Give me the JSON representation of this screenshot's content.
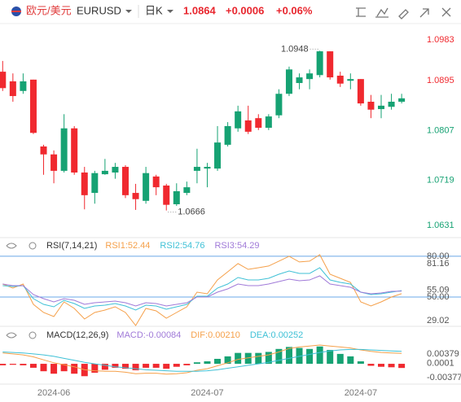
{
  "header": {
    "name": "欧元/美元",
    "symbol": "EURUSD",
    "period": "日K",
    "price": "1.0864",
    "change": "+0.0006",
    "change_pct": "+0.06%"
  },
  "chart_data": [
    {
      "type": "candlestick",
      "up_color": "#16a273",
      "down_color": "#f0292f",
      "categories": [
        null,
        null,
        null,
        null,
        null,
        "2024-06",
        null,
        null,
        null,
        null,
        null,
        null,
        null,
        null,
        null,
        null,
        null,
        null,
        null,
        null,
        "2024-07",
        null,
        null,
        null,
        null,
        null,
        null,
        null,
        null,
        null,
        null,
        null,
        null,
        null,
        null,
        "2024-07",
        null,
        null,
        null,
        null
      ],
      "open": [
        1.0911,
        1.0894,
        1.0877,
        1.0897,
        1.0779,
        1.0765,
        1.0736,
        1.0811,
        1.0733,
        1.0697,
        1.073,
        1.0733,
        1.0743,
        1.0697,
        1.0683,
        1.0726,
        1.071,
        1.0677,
        1.0697,
        1.0736,
        1.074,
        1.074,
        1.0782,
        1.0811,
        1.0825,
        1.0829,
        1.0812,
        1.0834,
        1.0872,
        1.0891,
        1.0898,
        1.0905,
        1.0947,
        1.0904,
        1.0895,
        1.0898,
        1.0858,
        1.0845,
        1.0849,
        1.0858
      ],
      "high": [
        1.093,
        1.0908,
        1.0908,
        1.0897,
        1.0782,
        1.0772,
        1.0836,
        1.0815,
        1.0743,
        1.0736,
        1.0757,
        1.075,
        1.0746,
        1.0713,
        1.0743,
        1.0729,
        1.0713,
        1.0714,
        1.0717,
        1.0775,
        1.075,
        1.0815,
        1.0822,
        1.0851,
        1.0851,
        1.0836,
        1.0836,
        1.088,
        1.092,
        1.0908,
        1.0915,
        1.0948,
        1.0947,
        1.0911,
        1.0908,
        1.0898,
        1.087,
        1.087,
        1.0872,
        1.0872
      ],
      "low": [
        1.0877,
        1.0858,
        1.0872,
        1.0801,
        1.0729,
        1.0714,
        1.0733,
        1.0729,
        1.0668,
        1.0678,
        1.0729,
        1.0722,
        1.0688,
        1.0667,
        1.0678,
        1.0693,
        1.0666,
        1.0674,
        1.0693,
        1.0714,
        1.0707,
        1.0736,
        1.0779,
        1.0805,
        1.0801,
        1.0808,
        1.0808,
        1.0829,
        1.0868,
        1.088,
        1.088,
        1.0901,
        1.0897,
        1.0884,
        1.088,
        1.0851,
        1.0829,
        1.0829,
        1.0844,
        1.0855
      ],
      "close": [
        1.0882,
        1.0868,
        1.0894,
        1.0803,
        1.0765,
        1.0736,
        1.0811,
        1.0733,
        1.0693,
        1.0732,
        1.0736,
        1.0743,
        1.0693,
        1.0686,
        1.0732,
        1.0707,
        1.0676,
        1.07,
        1.0707,
        1.0743,
        1.0743,
        1.0786,
        1.0815,
        1.0841,
        1.0805,
        1.0812,
        1.0832,
        1.0872,
        1.0915,
        1.0901,
        1.0908,
        1.0947,
        1.0901,
        1.089,
        1.0898,
        1.0855,
        1.0844,
        1.0851,
        1.0858,
        1.0864
      ],
      "ylim": [
        1.0631,
        1.0983
      ],
      "yticks": [
        1.0983,
        1.0895,
        1.0807,
        1.0719,
        1.0631
      ],
      "annotations": [
        {
          "label": "1.0948",
          "value": 1.0948
        },
        {
          "label": "1.0666",
          "value": 1.0666
        }
      ]
    },
    {
      "type": "line",
      "title": "RSI(7,14,21)",
      "series": [
        {
          "name": "RSI1:52.44",
          "color": "#f5a04a",
          "values": [
            59.6,
            56.6,
            59.6,
            44.6,
            38.6,
            35.6,
            46.4,
            41.6,
            33.8,
            38.6,
            40.4,
            42.8,
            38.6,
            29.02,
            41.6,
            39.8,
            34.4,
            38.6,
            42.8,
            53.6,
            52.4,
            62.6,
            68.6,
            74.6,
            70.4,
            71.6,
            72.8,
            76.4,
            80.0,
            75.8,
            76.4,
            81.16,
            66.8,
            63.8,
            60.8,
            46.4,
            43.4,
            46.4,
            50.0,
            52.44
          ]
        },
        {
          "name": "RSI2:54.76",
          "color": "#3fc1d6",
          "values": [
            58.4,
            57.8,
            58.4,
            48.8,
            44.6,
            42.8,
            47.6,
            45.2,
            41.6,
            43.4,
            44.0,
            45.2,
            43.4,
            40.4,
            44.0,
            43.4,
            41.0,
            42.8,
            44.6,
            50.6,
            50.6,
            56.6,
            59.6,
            64.4,
            62.6,
            62.6,
            63.8,
            66.8,
            69.2,
            67.4,
            67.4,
            71.6,
            62.6,
            60.8,
            59.6,
            53.6,
            51.8,
            52.4,
            53.6,
            54.76
          ]
        },
        {
          "name": "RSI3:54.29",
          "color": "#a07ad8",
          "values": [
            59.6,
            58.4,
            58.4,
            51.8,
            48.8,
            46.4,
            48.8,
            47.6,
            44.6,
            45.8,
            46.4,
            47.0,
            45.8,
            43.4,
            45.8,
            45.2,
            43.4,
            44.6,
            45.8,
            50.0,
            50.0,
            53.6,
            56.0,
            59.6,
            58.4,
            58.4,
            59.6,
            61.4,
            63.2,
            62.0,
            62.6,
            65.6,
            59.6,
            58.4,
            57.2,
            53.6,
            52.4,
            53.0,
            54.2,
            54.29
          ]
        }
      ],
      "ylim": [
        29.02,
        81.16
      ],
      "yticks": [
        81.16,
        {
          "value": 80,
          "label": "80.00"
        },
        55.09,
        {
          "value": 50,
          "label": "50.00"
        },
        29.02
      ],
      "reference_lines": [
        80,
        50
      ],
      "reference_color": "#6aa8e8"
    },
    {
      "type": "combo",
      "title": "MACD(12,26,9)",
      "up_color": "#16a273",
      "down_color": "#f0292f",
      "series": [
        {
          "name": "MACD:-0.00084",
          "type": "bar",
          "color": "#a07ad8",
          "values": [
            -0.0003,
            -0.0002,
            -0.0003,
            -0.0008,
            -0.0015,
            -0.002,
            -0.0015,
            -0.002,
            -0.0025,
            -0.0018,
            -0.0012,
            -0.0008,
            -0.001,
            -0.0013,
            -0.0008,
            -0.0008,
            -0.001,
            -0.0006,
            -0.0003,
            0.0003,
            0.0005,
            0.001,
            0.0015,
            0.0022,
            0.0022,
            0.0022,
            0.0024,
            0.003,
            0.0034,
            0.0032,
            0.003,
            0.0035,
            0.0028,
            0.002,
            0.0015,
            0.0005,
            -0.0004,
            -0.0006,
            -0.0007,
            -0.00084
          ]
        },
        {
          "name": "DIF:0.00210",
          "type": "line",
          "color": "#f5a04a",
          "values": [
            0.0022,
            0.002,
            0.0018,
            0.0014,
            0.0008,
            0.0002,
            -0.0002,
            -0.0006,
            -0.0012,
            -0.0014,
            -0.0015,
            -0.0015,
            -0.0017,
            -0.002,
            -0.0019,
            -0.0019,
            -0.0021,
            -0.002,
            -0.0018,
            -0.0013,
            -0.001,
            -0.0004,
            0.0002,
            0.0009,
            0.0012,
            0.0015,
            0.0018,
            0.0024,
            0.0031,
            0.0034,
            0.0036,
            0.00379,
            0.0036,
            0.0034,
            0.0032,
            0.0028,
            0.0025,
            0.0023,
            0.0022,
            0.0021
          ]
        },
        {
          "name": "DEA:0.00252",
          "type": "line",
          "color": "#3fc1d6",
          "values": [
            0.0024,
            0.0023,
            0.0022,
            0.002,
            0.0018,
            0.0015,
            0.0011,
            0.0007,
            0.0003,
            0.0,
            -0.0003,
            -0.0006,
            -0.0008,
            -0.001,
            -0.0012,
            -0.0013,
            -0.0014,
            -0.0015,
            -0.0015,
            -0.0015,
            -0.0014,
            -0.0012,
            -0.0009,
            -0.0006,
            -0.0003,
            0.0,
            0.0003,
            0.0007,
            0.0011,
            0.0015,
            0.0019,
            0.0023,
            0.0026,
            0.0028,
            0.0029,
            0.0029,
            0.0028,
            0.0027,
            0.0026,
            0.00252
          ]
        }
      ],
      "ylim": [
        -0.00377,
        0.00379
      ],
      "yticks": [
        0.00379,
        0.0001,
        -0.00377
      ]
    }
  ]
}
